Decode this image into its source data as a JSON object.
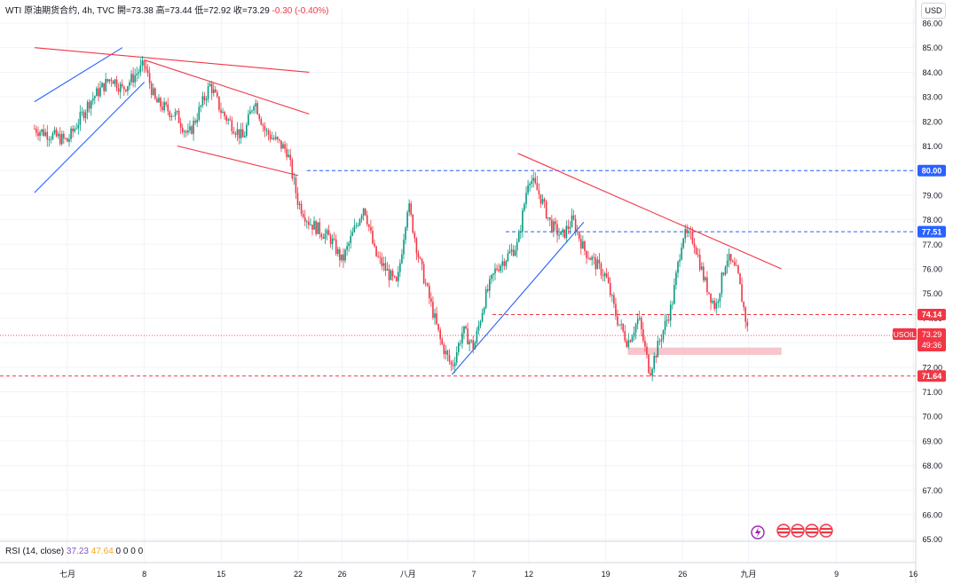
{
  "header": {
    "symbol": "WTI 原油期货合约, 4h, TVC",
    "open_label": "開",
    "open": "=73.38",
    "high_label": "高",
    "high": "=73.44",
    "low_label": "低",
    "low": "=72.92",
    "close_label": "收",
    "close": "=73.29",
    "change": "-0.30 (-0.40%)"
  },
  "currency": "USD",
  "rsi": {
    "label": "RSI (14, close)",
    "v1": "37.23",
    "v2": "47.64",
    "extras": "0 0 0 0"
  },
  "colors": {
    "up": "#089981",
    "down": "#f23645",
    "trend_blue": "#2962ff",
    "trend_red": "#f23645",
    "level_blue": "#2962ff",
    "level_red": "#f23645",
    "zone": "#f7c5cb"
  },
  "chart_data": {
    "type": "candlestick",
    "interval": "4h",
    "ylim": [
      65,
      86
    ],
    "y_ticks": [
      "86.00",
      "85.00",
      "84.00",
      "83.00",
      "82.00",
      "81.00",
      "80.00",
      "79.00",
      "78.00",
      "77.00",
      "76.00",
      "75.00",
      "74.00",
      "73.00",
      "72.00",
      "71.00",
      "70.00",
      "69.00",
      "68.00",
      "67.00",
      "66.00",
      "65.00"
    ],
    "x_ticks": [
      {
        "label": "七月",
        "date": "2024-07-01"
      },
      {
        "label": "8",
        "date": "2024-07-08"
      },
      {
        "label": "15",
        "date": "2024-07-15"
      },
      {
        "label": "22",
        "date": "2024-07-22"
      },
      {
        "label": "26",
        "date": "2024-07-26"
      },
      {
        "label": "八月",
        "date": "2024-08-01"
      },
      {
        "label": "7",
        "date": "2024-08-07"
      },
      {
        "label": "12",
        "date": "2024-08-12"
      },
      {
        "label": "19",
        "date": "2024-08-19"
      },
      {
        "label": "26",
        "date": "2024-08-26"
      },
      {
        "label": "九月",
        "date": "2024-09-01"
      },
      {
        "label": "9",
        "date": "2024-09-09"
      },
      {
        "label": "16",
        "date": "2024-09-16"
      }
    ],
    "price_path": [
      {
        "date": "2024-06-28",
        "close": 81.7
      },
      {
        "date": "2024-07-01",
        "close": 81.2
      },
      {
        "date": "2024-07-03",
        "close": 82.8
      },
      {
        "date": "2024-07-05",
        "close": 83.8
      },
      {
        "date": "2024-07-06",
        "close": 83.3
      },
      {
        "date": "2024-07-08",
        "close": 84.3
      },
      {
        "date": "2024-07-09",
        "close": 82.8
      },
      {
        "date": "2024-07-11",
        "close": 82.2
      },
      {
        "date": "2024-07-12",
        "close": 81.4
      },
      {
        "date": "2024-07-14",
        "close": 83.5
      },
      {
        "date": "2024-07-15",
        "close": 82.4
      },
      {
        "date": "2024-07-17",
        "close": 81.3
      },
      {
        "date": "2024-07-18",
        "close": 82.9
      },
      {
        "date": "2024-07-19",
        "close": 81.6
      },
      {
        "date": "2024-07-21",
        "close": 80.8
      },
      {
        "date": "2024-07-22",
        "close": 78.7
      },
      {
        "date": "2024-07-23",
        "close": 77.9
      },
      {
        "date": "2024-07-25",
        "close": 77.2
      },
      {
        "date": "2024-07-26",
        "close": 76.3
      },
      {
        "date": "2024-07-28",
        "close": 78.6
      },
      {
        "date": "2024-07-29",
        "close": 76.6
      },
      {
        "date": "2024-07-31",
        "close": 75.3
      },
      {
        "date": "2024-08-01",
        "close": 78.7
      },
      {
        "date": "2024-08-02",
        "close": 76.4
      },
      {
        "date": "2024-08-04",
        "close": 73.0
      },
      {
        "date": "2024-08-05",
        "close": 72.0
      },
      {
        "date": "2024-08-06",
        "close": 73.5
      },
      {
        "date": "2024-08-07",
        "close": 72.8
      },
      {
        "date": "2024-08-08",
        "close": 74.8
      },
      {
        "date": "2024-08-09",
        "close": 76.0
      },
      {
        "date": "2024-08-11",
        "close": 77.0
      },
      {
        "date": "2024-08-12",
        "close": 79.8
      },
      {
        "date": "2024-08-13",
        "close": 79.0
      },
      {
        "date": "2024-08-14",
        "close": 77.8
      },
      {
        "date": "2024-08-15",
        "close": 77.3
      },
      {
        "date": "2024-08-16",
        "close": 78.0
      },
      {
        "date": "2024-08-17",
        "close": 76.8
      },
      {
        "date": "2024-08-19",
        "close": 75.7
      },
      {
        "date": "2024-08-20",
        "close": 74.0
      },
      {
        "date": "2024-08-21",
        "close": 73.0
      },
      {
        "date": "2024-08-22",
        "close": 74.0
      },
      {
        "date": "2024-08-23",
        "close": 71.8
      },
      {
        "date": "2024-08-24",
        "close": 73.2
      },
      {
        "date": "2024-08-25",
        "close": 74.5
      },
      {
        "date": "2024-08-26",
        "close": 77.4
      },
      {
        "date": "2024-08-27",
        "close": 77.2
      },
      {
        "date": "2024-08-28",
        "close": 75.5
      },
      {
        "date": "2024-08-29",
        "close": 74.4
      },
      {
        "date": "2024-08-30",
        "close": 76.5
      },
      {
        "date": "2024-08-31",
        "close": 75.8
      },
      {
        "date": "2024-09-01",
        "close": 73.29
      }
    ],
    "horizontal_levels": [
      {
        "value": 80.0,
        "label": "80.00",
        "style": "dashed-blue"
      },
      {
        "value": 77.51,
        "label": "77.51",
        "style": "dashed-blue"
      },
      {
        "value": 74.14,
        "label": "74.14",
        "style": "dashed-red"
      },
      {
        "value": 71.64,
        "label": "71.64",
        "style": "dashed-red"
      }
    ],
    "last_price": {
      "symbol": "USOIL",
      "value": 73.29,
      "label": "73.29",
      "countdown": "49:36"
    },
    "support_zone": {
      "from_date": "2024-08-21",
      "to_date": "2024-09-04",
      "low": 72.5,
      "high": 72.8
    },
    "trendlines": [
      {
        "color": "blue",
        "from": {
          "date": "2024-06-28",
          "price": 82.8
        },
        "to": {
          "date": "2024-07-06",
          "price": 85.0
        }
      },
      {
        "color": "blue",
        "from": {
          "date": "2024-06-28",
          "price": 79.1
        },
        "to": {
          "date": "2024-07-08",
          "price": 83.6
        }
      },
      {
        "color": "red",
        "from": {
          "date": "2024-06-28",
          "price": 85.0
        },
        "to": {
          "date": "2024-07-23",
          "price": 84.0
        }
      },
      {
        "color": "red",
        "from": {
          "date": "2024-07-08",
          "price": 84.5
        },
        "to": {
          "date": "2024-07-23",
          "price": 82.3
        }
      },
      {
        "color": "red",
        "from": {
          "date": "2024-07-11",
          "price": 81.0
        },
        "to": {
          "date": "2024-07-22",
          "price": 79.8
        }
      },
      {
        "color": "blue",
        "from": {
          "date": "2024-08-05",
          "price": 71.7
        },
        "to": {
          "date": "2024-08-17",
          "price": 77.9
        }
      },
      {
        "color": "red",
        "from": {
          "date": "2024-08-11",
          "price": 80.7
        },
        "to": {
          "date": "2024-09-04",
          "price": 76.0
        }
      }
    ],
    "grid": true,
    "legend": "top-left"
  }
}
